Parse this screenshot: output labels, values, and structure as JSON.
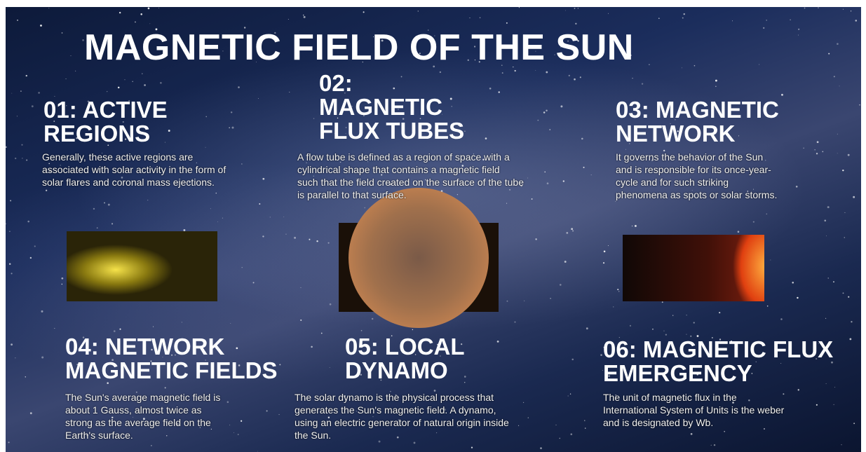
{
  "title": "MAGNETIC FIELD OF THE SUN",
  "sections": [
    {
      "heading": [
        "01: ACTIVE",
        "REGIONS"
      ],
      "text": [
        "Generally, these active regions are",
        "associated with solar activity in the form of",
        "solar flares and coronal mass ejections."
      ]
    },
    {
      "heading": [
        "02:",
        "MAGNETIC",
        "FLUX TUBES"
      ],
      "text": [
        "A flow tube is defined as a region of space with a",
        "cylindrical  shape that contains a magnetic field",
        "such that the field created on the surface of the tube",
        "is parallel to that surface."
      ]
    },
    {
      "heading": [
        "03: MAGNETIC",
        "NETWORK"
      ],
      "text": [
        "It governs the behavior of the Sun",
        "and is responsible for its once-year-",
        "cycle and for such striking",
        "phenomena as spots or solar storms."
      ]
    },
    {
      "heading": [
        "04: NETWORK",
        "MAGNETIC FIELDS"
      ],
      "text": [
        "The Sun's average magnetic field is",
        "about 1 Gauss, almost twice as",
        "strong as the average field on the",
        "Earth's surface."
      ]
    },
    {
      "heading": [
        "05: LOCAL",
        "DYNAMO"
      ],
      "text": [
        "The solar dynamo is the physical process that",
        "generates the Sun's magnetic field. A dynamo,",
        "using an electric generator of natural origin inside",
        "the Sun."
      ]
    },
    {
      "heading": [
        "06: MAGNETIC FLUX",
        "EMERGENCY"
      ],
      "text": [
        "The unit of magnetic flux in the",
        "International System of Units is the weber",
        "and is designated by Wb."
      ]
    }
  ]
}
